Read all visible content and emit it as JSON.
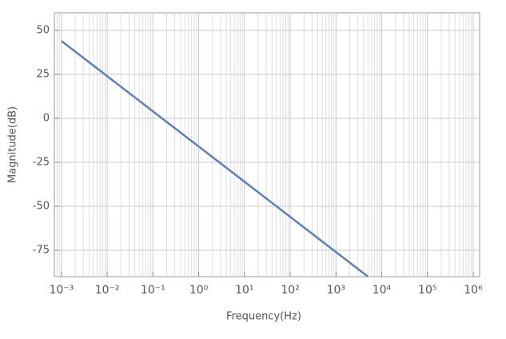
{
  "chart_data": {
    "type": "line",
    "xlabel": "Frequency(Hz)",
    "ylabel": "Magnitude(dB)",
    "x_scale": "log",
    "grid": true,
    "xlim": [
      0.0007,
      1380000
    ],
    "ylim": [
      -90,
      60
    ],
    "xticks": [
      {
        "value": 0.001,
        "label": "10⁻³"
      },
      {
        "value": 0.01,
        "label": "10⁻²"
      },
      {
        "value": 0.1,
        "label": "10⁻¹"
      },
      {
        "value": 1,
        "label": "10⁰"
      },
      {
        "value": 10,
        "label": "10¹"
      },
      {
        "value": 100,
        "label": "10²"
      },
      {
        "value": 1000,
        "label": "10³"
      },
      {
        "value": 10000,
        "label": "10⁴"
      },
      {
        "value": 100000,
        "label": "10⁵"
      },
      {
        "value": 1000000,
        "label": "10⁶"
      }
    ],
    "yticks": [
      50,
      25,
      0,
      -25,
      -50,
      -75
    ],
    "series": [
      {
        "color": "#5e81b5",
        "x": [
          0.001,
          0.01,
          0.1,
          1,
          10,
          100,
          1000,
          5000
        ],
        "values": [
          44,
          24,
          4,
          -16,
          -36,
          -56,
          -76,
          -90
        ]
      }
    ]
  }
}
